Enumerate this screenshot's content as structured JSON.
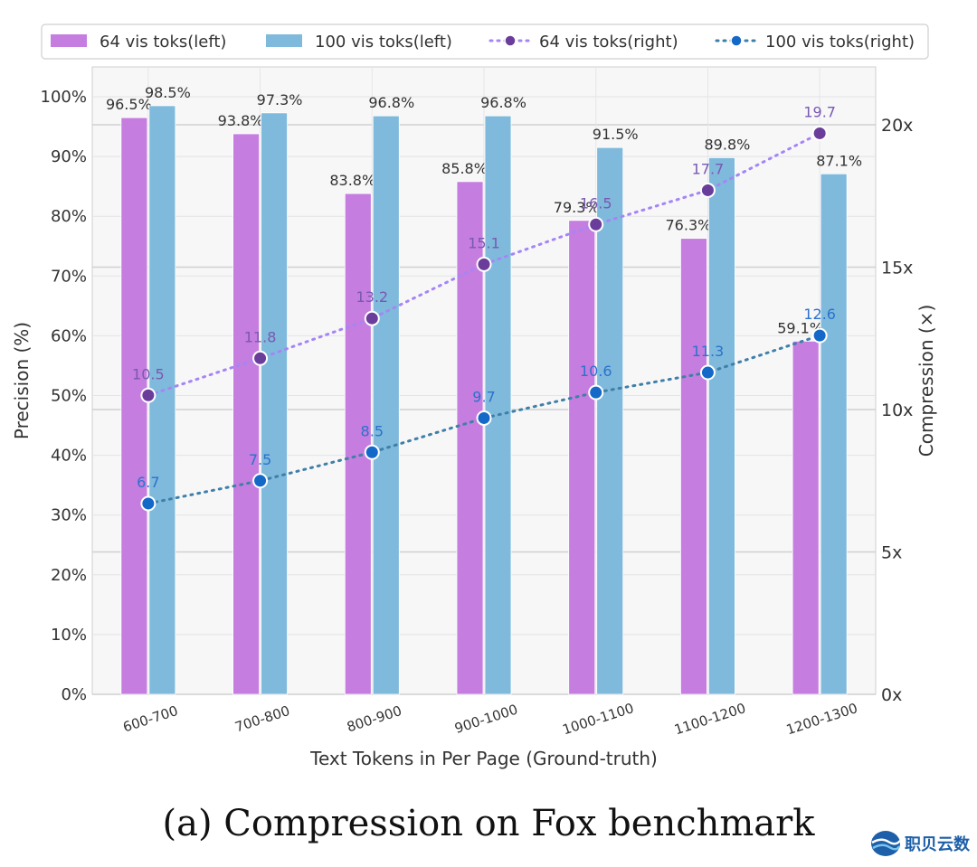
{
  "caption": "(a) Compression on Fox benchmark",
  "watermark": "职贝云数",
  "chart_data": {
    "type": "bar+line",
    "xlabel": "Text Tokens in Per Page (Ground-truth)",
    "ylabel_left": "Precision (%)",
    "ylabel_right": "Compression (×)",
    "ylim_left": [
      0,
      100
    ],
    "ylim_right": [
      0,
      21
    ],
    "yticks_left": [
      "0%",
      "10%",
      "20%",
      "30%",
      "40%",
      "50%",
      "60%",
      "70%",
      "80%",
      "90%",
      "100%"
    ],
    "yticks_right": [
      "0x",
      "5x",
      "10x",
      "15x",
      "20x"
    ],
    "categories": [
      "600-700",
      "700-800",
      "800-900",
      "900-1000",
      "1000-1100",
      "1100-1200",
      "1200-1300"
    ],
    "bar_series": [
      {
        "name": "64 vis toks(left)",
        "color": "#c57ddf",
        "values": [
          96.5,
          93.8,
          83.8,
          85.8,
          79.3,
          76.3,
          59.1
        ],
        "labels": [
          "96.5%",
          "93.8%",
          "83.8%",
          "85.8%",
          "79.3%",
          "76.3%",
          "59.1%"
        ]
      },
      {
        "name": "100 vis toks(left)",
        "color": "#7fbadc",
        "values": [
          98.5,
          97.3,
          96.8,
          96.8,
          91.5,
          89.8,
          87.1
        ],
        "labels": [
          "98.5%",
          "97.3%",
          "96.8%",
          "96.8%",
          "91.5%",
          "89.8%",
          "87.1%"
        ]
      }
    ],
    "line_series": [
      {
        "name": "64 vis toks(right)",
        "line_color": "#a585f5",
        "marker_color": "#6a3d9a",
        "label_color": "#7a58b0",
        "values": [
          10.5,
          11.8,
          13.2,
          15.1,
          16.5,
          17.7,
          19.7
        ],
        "labels": [
          "10.5",
          "11.8",
          "13.2",
          "15.1",
          "16.5",
          "17.7",
          "19.7"
        ]
      },
      {
        "name": "100 vis toks(right)",
        "line_color": "#3f7fa8",
        "marker_color": "#1468c8",
        "label_color": "#2a72cc",
        "values": [
          6.7,
          7.5,
          8.5,
          9.7,
          10.6,
          11.3,
          12.6
        ],
        "labels": [
          "6.7",
          "7.5",
          "8.5",
          "9.7",
          "10.6",
          "11.3",
          "12.6"
        ]
      }
    ],
    "legend_position": "top"
  }
}
